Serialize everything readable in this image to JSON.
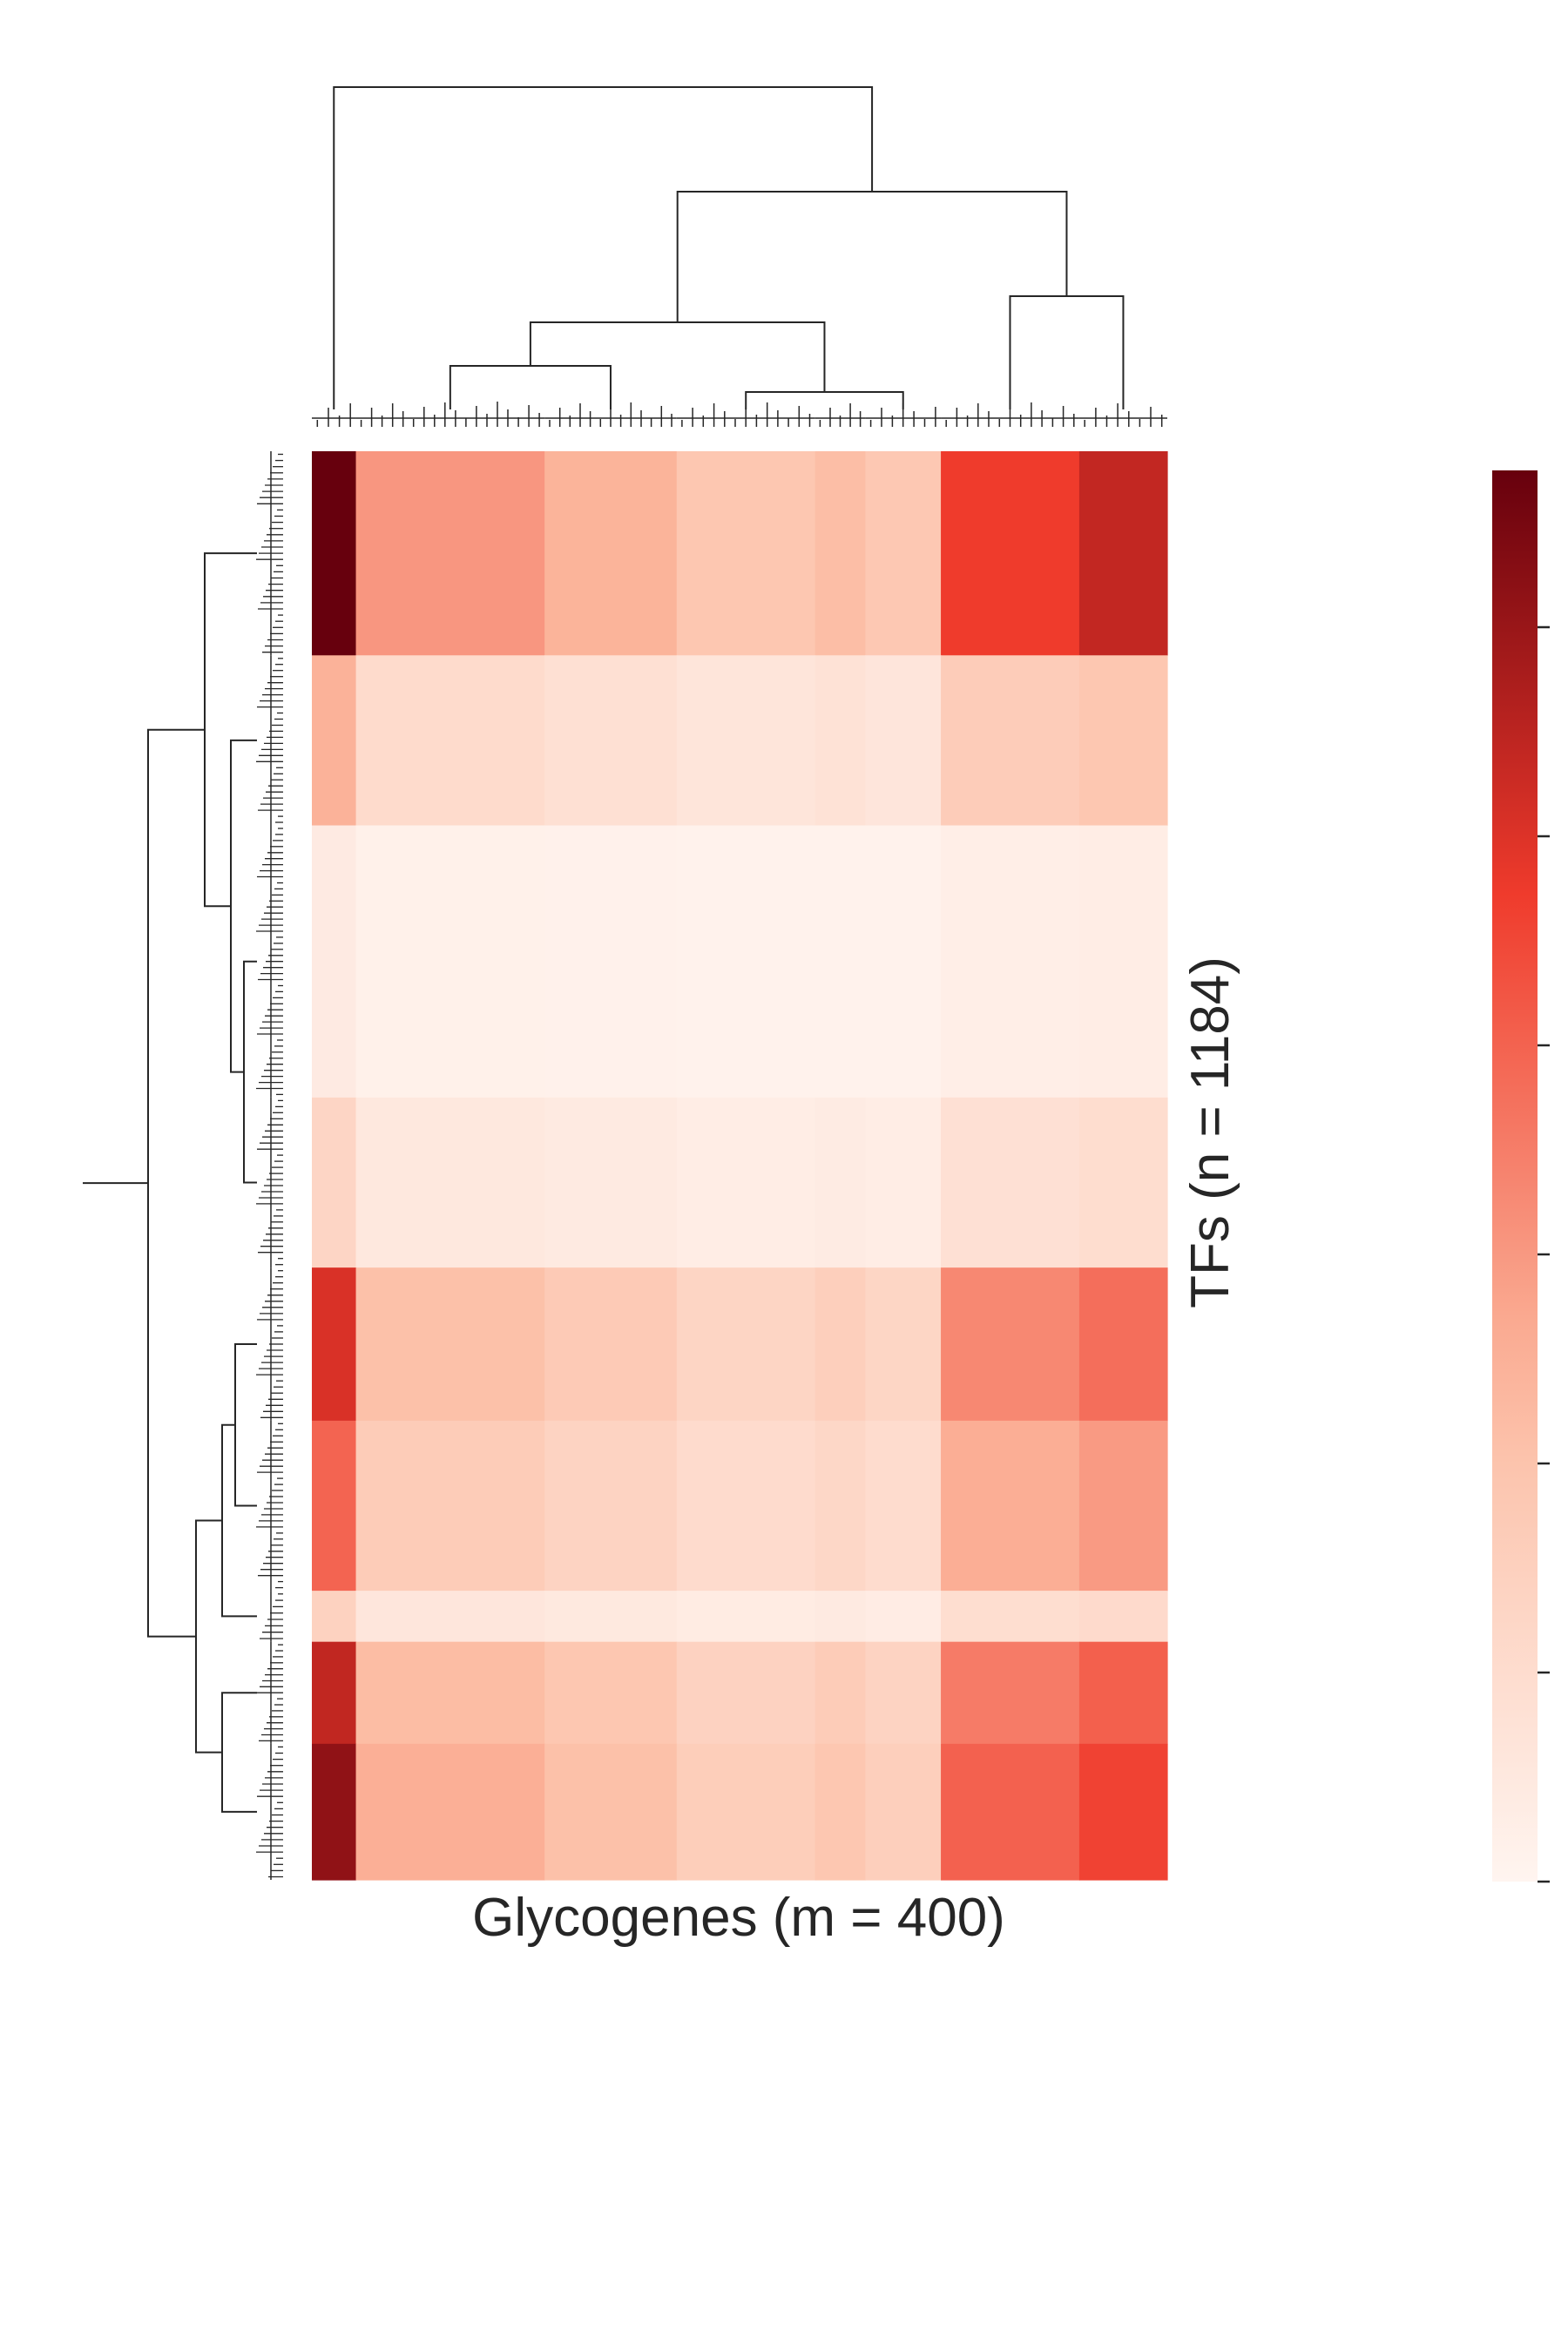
{
  "chart_data": {
    "type": "heatmap",
    "title": "",
    "xlabel": "Glycogenes (m = 400)",
    "ylabel": "TFs (n = 1184)",
    "colormap": "Reds",
    "colors": {
      "low": "#fff5f0",
      "high": "#67000d",
      "dendrogram": "#262626",
      "text": "#262626"
    },
    "colorbar": {
      "ticks": 7,
      "tick_labels_visible": false
    },
    "column_dendrogram": true,
    "row_dendrogram": true,
    "column_blocks": [
      {
        "block": "C1",
        "weight": 7,
        "level": 0.82
      },
      {
        "block": "C2",
        "weight": 30,
        "level": 0.2
      },
      {
        "block": "C3",
        "weight": 21,
        "level": 0.12
      },
      {
        "block": "C4",
        "weight": 22,
        "level": 0.03
      },
      {
        "block": "C5",
        "weight": 8,
        "level": 0.08
      },
      {
        "block": "C6",
        "weight": 12,
        "level": 0.02
      },
      {
        "block": "C7",
        "weight": 22,
        "level": 0.45
      },
      {
        "block": "C8",
        "weight": 14,
        "level": 0.55
      }
    ],
    "row_blocks": [
      {
        "block": "R1",
        "weight": 12,
        "level": 1.0
      },
      {
        "block": "R2",
        "weight": 10,
        "level": 0.35
      },
      {
        "block": "R3",
        "weight": 16,
        "level": 0.06
      },
      {
        "block": "R4",
        "weight": 10,
        "level": 0.18
      },
      {
        "block": "R5",
        "weight": 9,
        "level": 0.7
      },
      {
        "block": "R6",
        "weight": 10,
        "level": 0.55
      },
      {
        "block": "R7",
        "weight": 3,
        "level": 0.2
      },
      {
        "block": "R8",
        "weight": 6,
        "level": 0.75
      },
      {
        "block": "R9",
        "weight": 8,
        "level": 0.85
      }
    ]
  }
}
